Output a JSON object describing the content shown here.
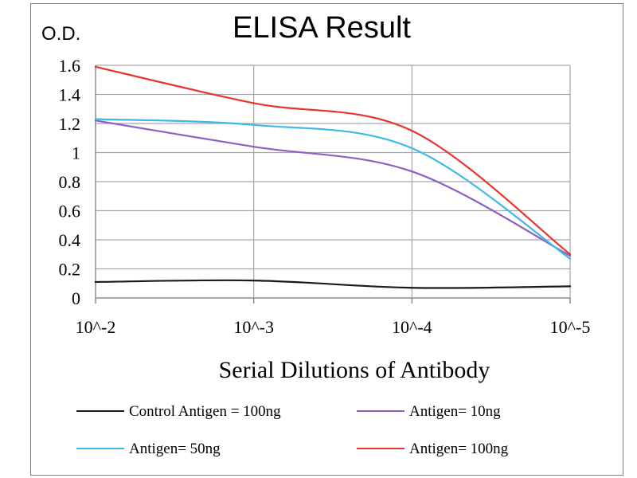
{
  "chart_data": {
    "type": "line",
    "title": "ELISA Result",
    "ylabel": "O.D.",
    "xlabel": "Serial  Dilutions  of Antibody",
    "categories": [
      "10^-2",
      "10^-3",
      "10^-4",
      "10^-5"
    ],
    "ylim": [
      0,
      1.6
    ],
    "yticks": [
      "0",
      "0.2",
      "0.4",
      "0.6",
      "0.8",
      "1",
      "1.2",
      "1.4",
      "1.6"
    ],
    "grid": true,
    "legend_position": "bottom",
    "series": [
      {
        "name": "Control Antigen = 100ng",
        "color": "#1a1a1a",
        "values": [
          0.11,
          0.12,
          0.07,
          0.08
        ]
      },
      {
        "name": "Antigen= 10ng",
        "color": "#8e5fc4",
        "values": [
          1.22,
          1.04,
          0.87,
          0.29
        ]
      },
      {
        "name": "Antigen= 50ng",
        "color": "#3fb8e8",
        "values": [
          1.23,
          1.19,
          1.03,
          0.27
        ]
      },
      {
        "name": "Antigen= 100ng",
        "color": "#e8352d",
        "values": [
          1.59,
          1.34,
          1.15,
          0.3
        ]
      }
    ]
  }
}
